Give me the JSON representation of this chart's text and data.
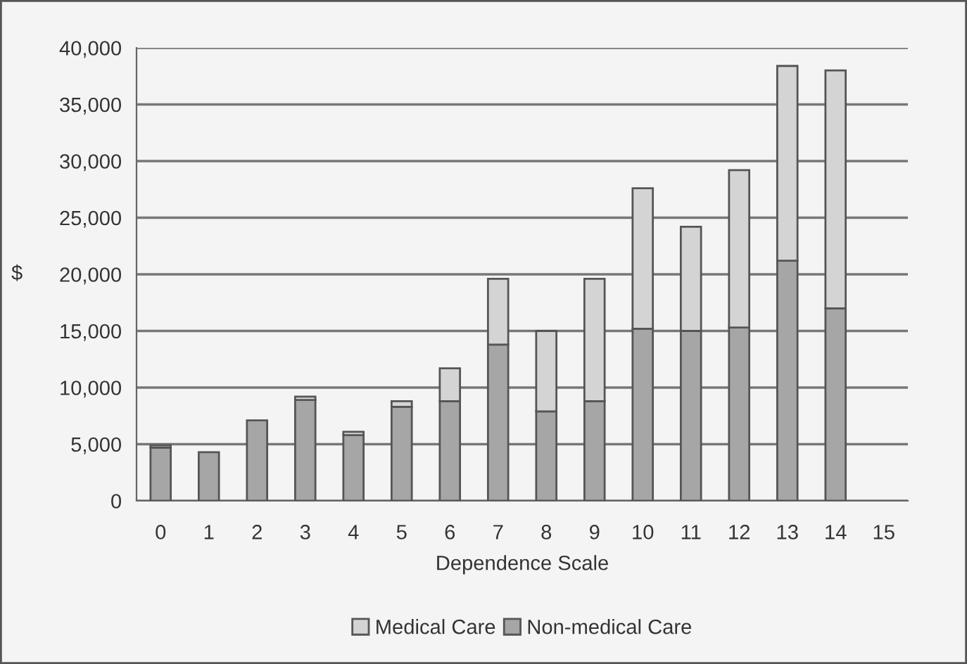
{
  "chart_data": {
    "type": "bar",
    "stacked": true,
    "xlabel": "Dependence Scale",
    "ylabel": "$",
    "categories": [
      "0",
      "1",
      "2",
      "3",
      "4",
      "5",
      "6",
      "7",
      "8",
      "9",
      "10",
      "11",
      "12",
      "13",
      "14",
      "15"
    ],
    "series": [
      {
        "name": "Non-medical Care",
        "color": "#a6a6a6",
        "values": [
          4700,
          4300,
          7100,
          8900,
          5800,
          8300,
          8800,
          13800,
          7900,
          8800,
          15200,
          15000,
          15300,
          21200,
          17000,
          null
        ]
      },
      {
        "name": "Medical Care",
        "color": "#d4d4d4",
        "values": [
          200,
          0,
          0,
          300,
          300,
          500,
          2900,
          5800,
          7100,
          10800,
          12400,
          9200,
          13900,
          17200,
          21000,
          null
        ]
      }
    ],
    "ylim": [
      0,
      40000
    ],
    "yticks": [
      {
        "value": 0,
        "label": "0"
      },
      {
        "value": 5000,
        "label": "5,000"
      },
      {
        "value": 10000,
        "label": "10,000"
      },
      {
        "value": 15000,
        "label": "15,000"
      },
      {
        "value": 20000,
        "label": "20,000"
      },
      {
        "value": 25000,
        "label": "25,000"
      },
      {
        "value": 30000,
        "label": "30,000"
      },
      {
        "value": 35000,
        "label": "35,000"
      },
      {
        "value": 40000,
        "label": "40,000"
      }
    ],
    "grid": "y",
    "legend": "bottom"
  }
}
